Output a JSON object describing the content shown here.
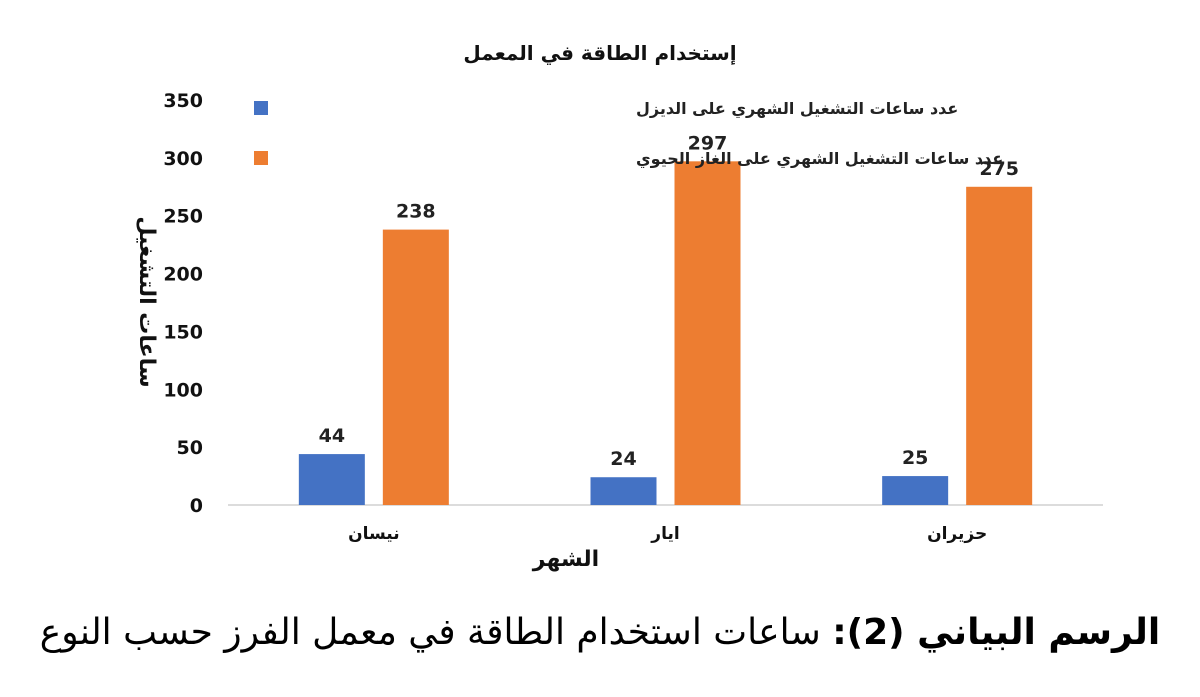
{
  "chart_data": {
    "type": "bar",
    "title": "إستخدام الطاقة في المعمل",
    "xlabel": "الشهر",
    "ylabel": "ساعات التشغيل",
    "categories": [
      "نيسان",
      "ايار",
      "حزيران"
    ],
    "series": [
      {
        "name": "عدد ساعات التشغيل الشهري على الديزل",
        "values": [
          44,
          24,
          25
        ],
        "color": "#4472C4"
      },
      {
        "name": "عدد ساعات التشغيل الشهري على الغاز الحيوي",
        "values": [
          238,
          297,
          275
        ],
        "color": "#ED7D31"
      }
    ],
    "ylim": [
      0,
      350
    ],
    "yticks": [
      0,
      50,
      100,
      150,
      200,
      250,
      300,
      350
    ],
    "grid": false,
    "data_labels": true,
    "legend": "top-right"
  },
  "caption": {
    "bold": "الرسم البياني (2):",
    "text": "ساعات استخدام الطاقة في معمل الفرز حسب النوع"
  }
}
